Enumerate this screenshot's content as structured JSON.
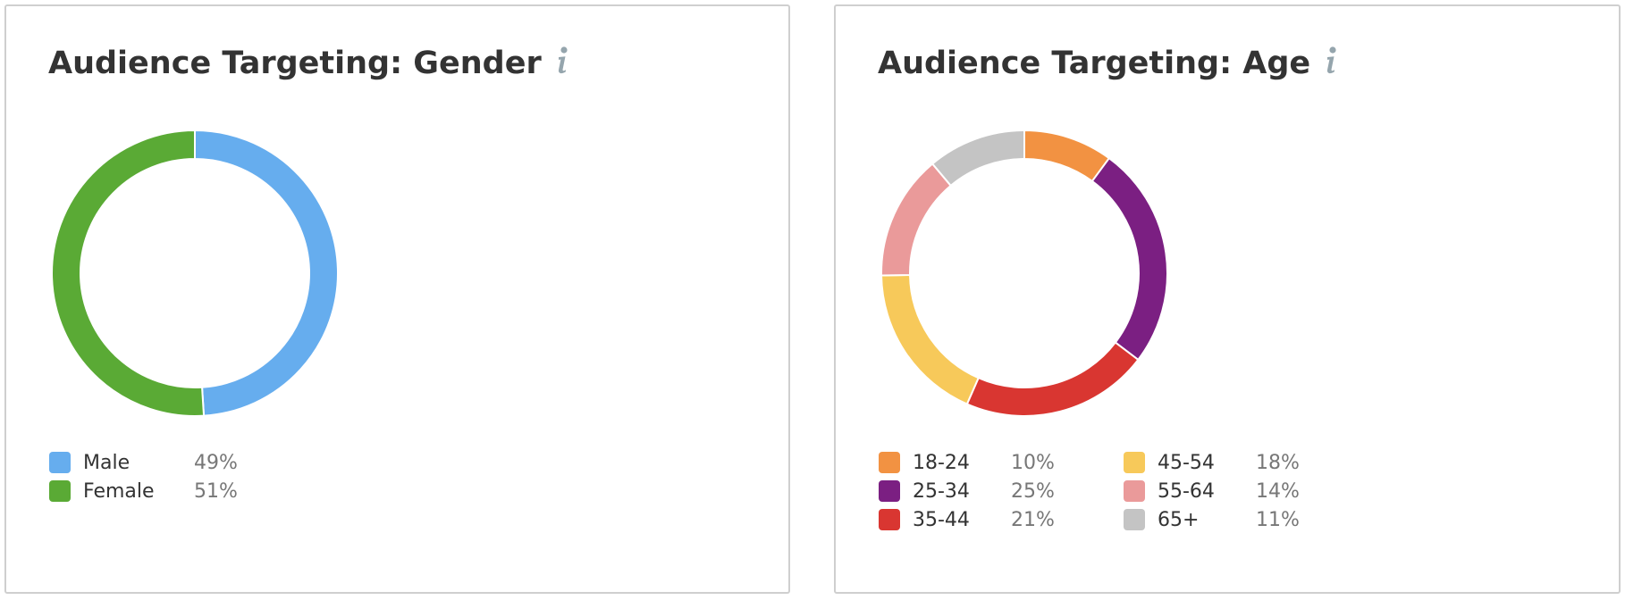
{
  "colors": {
    "male": "#66adee",
    "female": "#5aaa35",
    "age_18_24": "#f29242",
    "age_25_34": "#7b1f82",
    "age_35_44": "#d93631",
    "age_45_54": "#f7c95a",
    "age_55_64": "#ea9a9a",
    "age_65_plus": "#c4c4c4",
    "info_icon": "#95a5ad"
  },
  "gender_card": {
    "title": "Audience Targeting: Gender",
    "info_icon": "info-icon",
    "legend": [
      {
        "label": "Male",
        "value": "49%"
      },
      {
        "label": "Female",
        "value": "51%"
      }
    ]
  },
  "age_card": {
    "title": "Audience Targeting: Age",
    "info_icon": "info-icon",
    "legend": [
      {
        "label": "18-24",
        "value": "10%"
      },
      {
        "label": "25-34",
        "value": "25%"
      },
      {
        "label": "35-44",
        "value": "21%"
      },
      {
        "label": "45-54",
        "value": "18%"
      },
      {
        "label": "55-64",
        "value": "14%"
      },
      {
        "label": "65+",
        "value": "11%"
      }
    ]
  },
  "chart_data": [
    {
      "type": "pie",
      "title": "Audience Targeting: Gender",
      "categories": [
        "Male",
        "Female"
      ],
      "values": [
        49,
        51
      ],
      "unit": "%",
      "legend": "bottom-left"
    },
    {
      "type": "pie",
      "title": "Audience Targeting: Age",
      "categories": [
        "18-24",
        "25-34",
        "35-44",
        "45-54",
        "55-64",
        "65+"
      ],
      "values": [
        10,
        25,
        21,
        18,
        14,
        11
      ],
      "unit": "%",
      "legend": "bottom-left"
    }
  ]
}
